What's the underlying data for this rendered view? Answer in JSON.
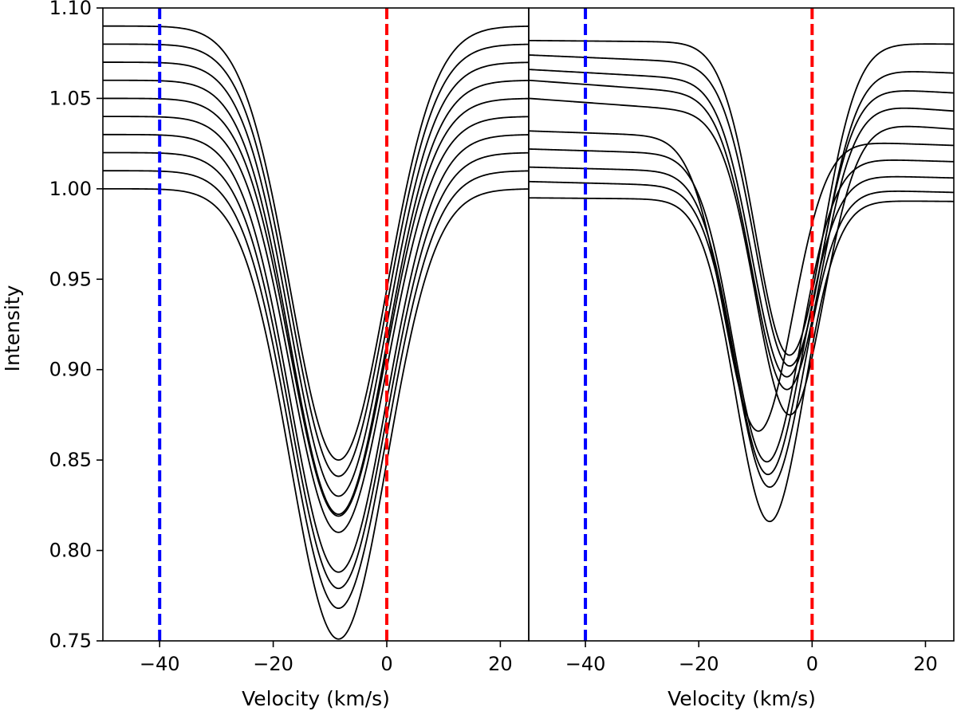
{
  "chart_data": [
    {
      "type": "line",
      "title": "",
      "xlabel": "Velocity (km/s)",
      "ylabel": "Intensity",
      "xlim": [
        -50,
        25
      ],
      "ylim": [
        0.75,
        1.1
      ],
      "xticks": [
        -40,
        -20,
        0,
        20
      ],
      "xtick_labels": [
        "−40",
        "−20",
        "0",
        "20"
      ],
      "yticks": [
        0.75,
        0.8,
        0.85,
        0.9,
        0.95,
        1.0,
        1.05,
        1.1
      ],
      "ytick_labels": [
        "0.75",
        "0.80",
        "0.85",
        "0.90",
        "0.95",
        "1.00",
        "1.05",
        "1.10"
      ],
      "grid": false,
      "vlines": [
        {
          "x": -40,
          "color": "#0000ff",
          "style": "dashed"
        },
        {
          "x": 0,
          "color": "#ff0000",
          "style": "dashed"
        }
      ],
      "line_color": "#000000",
      "profile_shape": {
        "center": -8.5,
        "width": 8.5
      },
      "series": [
        {
          "continuum": 1.0,
          "depth": 0.249
        },
        {
          "continuum": 1.01,
          "depth": 0.242
        },
        {
          "continuum": 1.02,
          "depth": 0.241
        },
        {
          "continuum": 1.03,
          "depth": 0.242
        },
        {
          "continuum": 1.04,
          "depth": 0.23
        },
        {
          "continuum": 1.05,
          "depth": 0.231
        },
        {
          "continuum": 1.06,
          "depth": 0.24
        },
        {
          "continuum": 1.07,
          "depth": 0.24
        },
        {
          "continuum": 1.08,
          "depth": 0.239
        },
        {
          "continuum": 1.09,
          "depth": 0.24
        }
      ]
    },
    {
      "type": "line",
      "title": "",
      "xlabel": "Velocity (km/s)",
      "ylabel": "",
      "xlim": [
        -50,
        25
      ],
      "ylim": [
        0.75,
        1.1
      ],
      "xticks": [
        -40,
        -20,
        0,
        20
      ],
      "xtick_labels": [
        "−40",
        "−20",
        "0",
        "20"
      ],
      "grid": false,
      "vlines": [
        {
          "x": -40,
          "color": "#0000ff",
          "style": "dashed"
        },
        {
          "x": 0,
          "color": "#ff0000",
          "style": "dashed"
        }
      ],
      "line_color": "#000000",
      "series": [
        {
          "continuum_left": 0.995,
          "continuum_right": 0.993,
          "center": -7.5,
          "width": 6.0,
          "minimum": 0.816
        },
        {
          "continuum_left": 1.004,
          "continuum_right": 0.998,
          "center": -7.5,
          "width": 6.0,
          "minimum": 0.835
        },
        {
          "continuum_left": 1.012,
          "continuum_right": 1.006,
          "center": -7.8,
          "width": 6.0,
          "minimum": 0.842
        },
        {
          "continuum_left": 1.022,
          "continuum_right": 1.015,
          "center": -8.0,
          "width": 6.0,
          "minimum": 0.849
        },
        {
          "continuum_left": 1.032,
          "continuum_right": 1.024,
          "center": -9.5,
          "width": 6.0,
          "minimum": 0.866
        },
        {
          "continuum_left": 1.05,
          "continuum_right": 1.033,
          "center": -4.0,
          "width": 6.0,
          "minimum": 0.875
        },
        {
          "continuum_left": 1.06,
          "continuum_right": 1.043,
          "center": -4.5,
          "width": 6.0,
          "minimum": 0.889
        },
        {
          "continuum_left": 1.066,
          "continuum_right": 1.053,
          "center": -4.5,
          "width": 6.0,
          "minimum": 0.896
        },
        {
          "continuum_left": 1.074,
          "continuum_right": 1.064,
          "center": -4.0,
          "width": 6.0,
          "minimum": 0.902
        },
        {
          "continuum_left": 1.082,
          "continuum_right": 1.08,
          "center": -4.0,
          "width": 6.0,
          "minimum": 0.908
        }
      ]
    }
  ]
}
